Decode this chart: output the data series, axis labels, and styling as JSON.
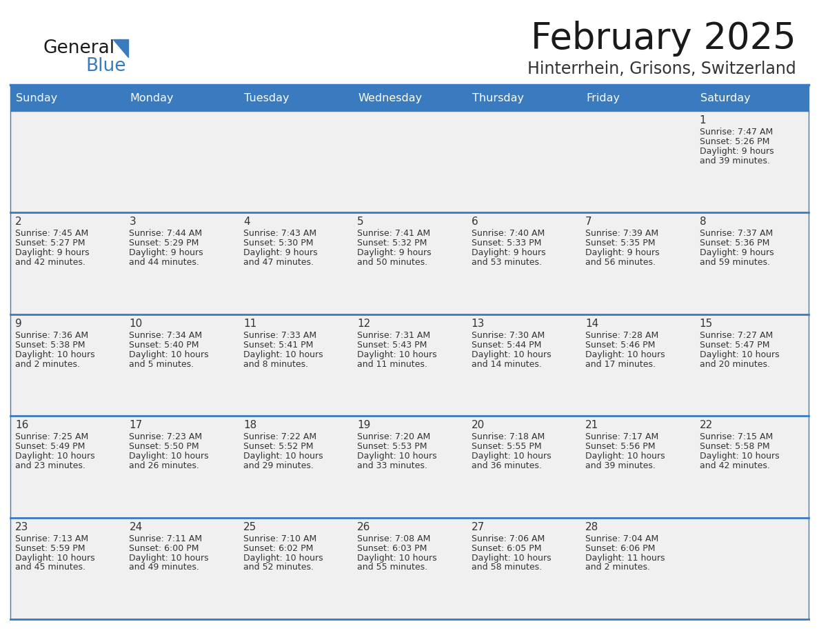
{
  "title": "February 2025",
  "subtitle": "Hinterrhein, Grisons, Switzerland",
  "header_bg": "#3a7abf",
  "header_text": "#FFFFFF",
  "cell_bg": "#F0F0F0",
  "border_color": "#3a7abf",
  "separator_color": "#3a7abf",
  "day_headers": [
    "Sunday",
    "Monday",
    "Tuesday",
    "Wednesday",
    "Thursday",
    "Friday",
    "Saturday"
  ],
  "text_color": "#333333",
  "days": [
    {
      "day": 1,
      "col": 6,
      "row": 0,
      "sunrise": "7:47 AM",
      "sunset": "5:26 PM",
      "daylight": "9 hours",
      "daylight2": "and 39 minutes."
    },
    {
      "day": 2,
      "col": 0,
      "row": 1,
      "sunrise": "7:45 AM",
      "sunset": "5:27 PM",
      "daylight": "9 hours",
      "daylight2": "and 42 minutes."
    },
    {
      "day": 3,
      "col": 1,
      "row": 1,
      "sunrise": "7:44 AM",
      "sunset": "5:29 PM",
      "daylight": "9 hours",
      "daylight2": "and 44 minutes."
    },
    {
      "day": 4,
      "col": 2,
      "row": 1,
      "sunrise": "7:43 AM",
      "sunset": "5:30 PM",
      "daylight": "9 hours",
      "daylight2": "and 47 minutes."
    },
    {
      "day": 5,
      "col": 3,
      "row": 1,
      "sunrise": "7:41 AM",
      "sunset": "5:32 PM",
      "daylight": "9 hours",
      "daylight2": "and 50 minutes."
    },
    {
      "day": 6,
      "col": 4,
      "row": 1,
      "sunrise": "7:40 AM",
      "sunset": "5:33 PM",
      "daylight": "9 hours",
      "daylight2": "and 53 minutes."
    },
    {
      "day": 7,
      "col": 5,
      "row": 1,
      "sunrise": "7:39 AM",
      "sunset": "5:35 PM",
      "daylight": "9 hours",
      "daylight2": "and 56 minutes."
    },
    {
      "day": 8,
      "col": 6,
      "row": 1,
      "sunrise": "7:37 AM",
      "sunset": "5:36 PM",
      "daylight": "9 hours",
      "daylight2": "and 59 minutes."
    },
    {
      "day": 9,
      "col": 0,
      "row": 2,
      "sunrise": "7:36 AM",
      "sunset": "5:38 PM",
      "daylight": "10 hours",
      "daylight2": "and 2 minutes."
    },
    {
      "day": 10,
      "col": 1,
      "row": 2,
      "sunrise": "7:34 AM",
      "sunset": "5:40 PM",
      "daylight": "10 hours",
      "daylight2": "and 5 minutes."
    },
    {
      "day": 11,
      "col": 2,
      "row": 2,
      "sunrise": "7:33 AM",
      "sunset": "5:41 PM",
      "daylight": "10 hours",
      "daylight2": "and 8 minutes."
    },
    {
      "day": 12,
      "col": 3,
      "row": 2,
      "sunrise": "7:31 AM",
      "sunset": "5:43 PM",
      "daylight": "10 hours",
      "daylight2": "and 11 minutes."
    },
    {
      "day": 13,
      "col": 4,
      "row": 2,
      "sunrise": "7:30 AM",
      "sunset": "5:44 PM",
      "daylight": "10 hours",
      "daylight2": "and 14 minutes."
    },
    {
      "day": 14,
      "col": 5,
      "row": 2,
      "sunrise": "7:28 AM",
      "sunset": "5:46 PM",
      "daylight": "10 hours",
      "daylight2": "and 17 minutes."
    },
    {
      "day": 15,
      "col": 6,
      "row": 2,
      "sunrise": "7:27 AM",
      "sunset": "5:47 PM",
      "daylight": "10 hours",
      "daylight2": "and 20 minutes."
    },
    {
      "day": 16,
      "col": 0,
      "row": 3,
      "sunrise": "7:25 AM",
      "sunset": "5:49 PM",
      "daylight": "10 hours",
      "daylight2": "and 23 minutes."
    },
    {
      "day": 17,
      "col": 1,
      "row": 3,
      "sunrise": "7:23 AM",
      "sunset": "5:50 PM",
      "daylight": "10 hours",
      "daylight2": "and 26 minutes."
    },
    {
      "day": 18,
      "col": 2,
      "row": 3,
      "sunrise": "7:22 AM",
      "sunset": "5:52 PM",
      "daylight": "10 hours",
      "daylight2": "and 29 minutes."
    },
    {
      "day": 19,
      "col": 3,
      "row": 3,
      "sunrise": "7:20 AM",
      "sunset": "5:53 PM",
      "daylight": "10 hours",
      "daylight2": "and 33 minutes."
    },
    {
      "day": 20,
      "col": 4,
      "row": 3,
      "sunrise": "7:18 AM",
      "sunset": "5:55 PM",
      "daylight": "10 hours",
      "daylight2": "and 36 minutes."
    },
    {
      "day": 21,
      "col": 5,
      "row": 3,
      "sunrise": "7:17 AM",
      "sunset": "5:56 PM",
      "daylight": "10 hours",
      "daylight2": "and 39 minutes."
    },
    {
      "day": 22,
      "col": 6,
      "row": 3,
      "sunrise": "7:15 AM",
      "sunset": "5:58 PM",
      "daylight": "10 hours",
      "daylight2": "and 42 minutes."
    },
    {
      "day": 23,
      "col": 0,
      "row": 4,
      "sunrise": "7:13 AM",
      "sunset": "5:59 PM",
      "daylight": "10 hours",
      "daylight2": "and 45 minutes."
    },
    {
      "day": 24,
      "col": 1,
      "row": 4,
      "sunrise": "7:11 AM",
      "sunset": "6:00 PM",
      "daylight": "10 hours",
      "daylight2": "and 49 minutes."
    },
    {
      "day": 25,
      "col": 2,
      "row": 4,
      "sunrise": "7:10 AM",
      "sunset": "6:02 PM",
      "daylight": "10 hours",
      "daylight2": "and 52 minutes."
    },
    {
      "day": 26,
      "col": 3,
      "row": 4,
      "sunrise": "7:08 AM",
      "sunset": "6:03 PM",
      "daylight": "10 hours",
      "daylight2": "and 55 minutes."
    },
    {
      "day": 27,
      "col": 4,
      "row": 4,
      "sunrise": "7:06 AM",
      "sunset": "6:05 PM",
      "daylight": "10 hours",
      "daylight2": "and 58 minutes."
    },
    {
      "day": 28,
      "col": 5,
      "row": 4,
      "sunrise": "7:04 AM",
      "sunset": "6:06 PM",
      "daylight": "11 hours",
      "daylight2": "and 2 minutes."
    }
  ],
  "num_rows": 5,
  "num_cols": 7,
  "logo_general_color": "#1a1a1a",
  "logo_blue_color": "#3a7abf",
  "title_color": "#1a1a1a",
  "subtitle_color": "#333333",
  "title_fontsize": 38,
  "subtitle_fontsize": 17,
  "header_fontsize": 11.5,
  "daynum_fontsize": 11,
  "cell_fontsize": 9
}
